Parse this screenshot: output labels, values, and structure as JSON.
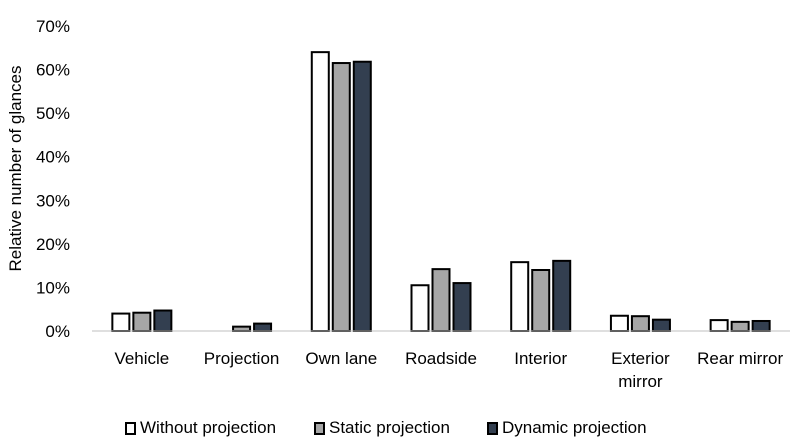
{
  "chart_data": {
    "type": "bar",
    "title": "",
    "xlabel": "",
    "ylabel": "Relative number of glances",
    "ylim": [
      0,
      70
    ],
    "y_ticks": [
      "0%",
      "10%",
      "20%",
      "30%",
      "40%",
      "50%",
      "60%",
      "70%"
    ],
    "y_tick_values": [
      0,
      10,
      20,
      30,
      40,
      50,
      60,
      70
    ],
    "grid": false,
    "legend_position": "bottom",
    "categories": [
      [
        "Vehicle"
      ],
      [
        "Projection"
      ],
      [
        "Own lane"
      ],
      [
        "Roadside"
      ],
      [
        "Interior"
      ],
      [
        "Exterior",
        "mirror"
      ],
      [
        "Rear mirror"
      ]
    ],
    "series": [
      {
        "name": "Without projection",
        "color": "#ffffff",
        "values": [
          4.0,
          0.0,
          64.0,
          10.5,
          15.8,
          3.5,
          2.5
        ]
      },
      {
        "name": "Static projection",
        "color": "#a6a6a6",
        "values": [
          4.2,
          1.0,
          61.5,
          14.2,
          14.0,
          3.4,
          2.1
        ]
      },
      {
        "name": "Dynamic projection",
        "color": "#333f50",
        "values": [
          4.7,
          1.7,
          61.8,
          11.0,
          16.1,
          2.6,
          2.3
        ]
      }
    ]
  }
}
